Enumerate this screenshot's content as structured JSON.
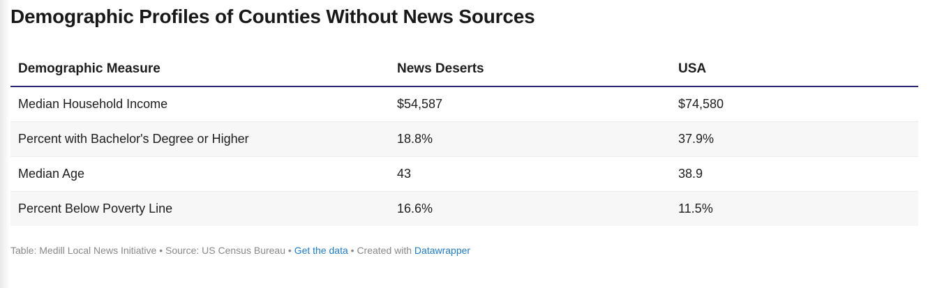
{
  "chart_data": {
    "type": "table",
    "title": "Demographic Profiles of Counties Without News Sources",
    "columns": [
      "Demographic Measure",
      "News Deserts",
      "USA"
    ],
    "rows": [
      [
        "Median Household Income",
        "$54,587",
        "$74,580"
      ],
      [
        "Percent with Bachelor's Degree or Higher",
        "18.8%",
        "37.9%"
      ],
      [
        "Median Age",
        "43",
        "38.9"
      ],
      [
        "Percent Below Poverty Line",
        "16.6%",
        "11.5%"
      ]
    ]
  },
  "footer": {
    "table_credit": "Table: Medill Local News Initiative",
    "source": "Source: US Census Bureau",
    "get_data_link": "Get the data",
    "created_with": "Created with",
    "datawrapper_link": "Datawrapper",
    "separator": " • "
  },
  "colors": {
    "header_rule": "#2a2970",
    "link": "#1f7ac4",
    "stripe": "#f7f7f7"
  }
}
